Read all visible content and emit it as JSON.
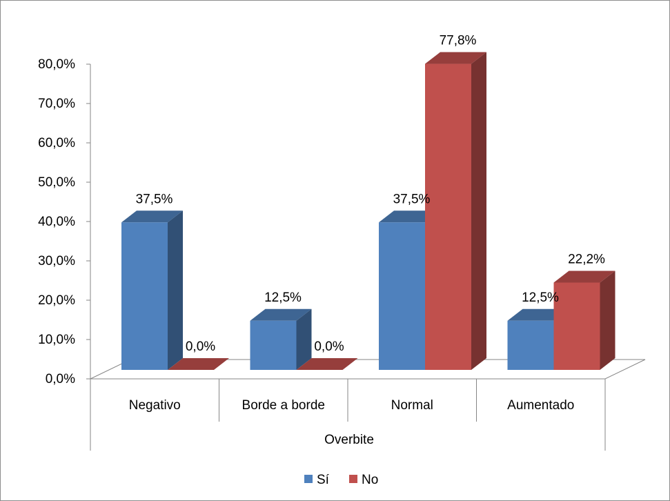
{
  "chart_data": {
    "type": "bar",
    "title": "",
    "xlabel": "Overbite",
    "ylabel": "",
    "categories": [
      "Negativo",
      "Borde a borde",
      "Normal",
      "Aumentado"
    ],
    "series": [
      {
        "name": "Sí",
        "values": [
          37.5,
          12.5,
          37.5,
          12.5
        ],
        "labels": [
          "37,5%",
          "12,5%",
          "37,5%",
          "12,5%"
        ],
        "color": "#4f81bd"
      },
      {
        "name": "No",
        "values": [
          0.0,
          0.0,
          77.8,
          22.2
        ],
        "labels": [
          "0,0%",
          "0,0%",
          "77,8%",
          "22,2%"
        ],
        "color": "#c0504d"
      }
    ],
    "yticks": [
      "0,0%",
      "10,0%",
      "20,0%",
      "30,0%",
      "40,0%",
      "50,0%",
      "60,0%",
      "70,0%",
      "80,0%"
    ],
    "ylim": [
      0,
      80
    ],
    "grid": false,
    "legend": "bottom",
    "style": "3d-clustered-column"
  }
}
